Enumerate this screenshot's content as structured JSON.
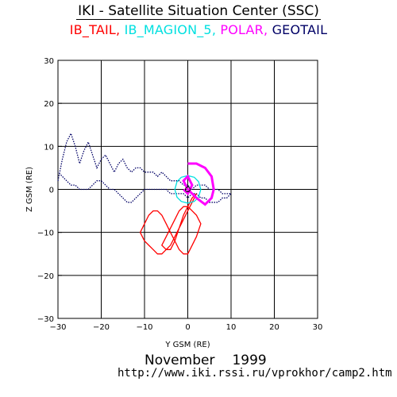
{
  "header": {
    "title": "IKI - Satellite Situation Center (SSC)",
    "legend": [
      {
        "label": "IB_TAIL",
        "color": "#ff0000"
      },
      {
        "label": "IB_MAGION_5",
        "color": "#00e0e0"
      },
      {
        "label": "POLAR",
        "color": "#ff00ff"
      },
      {
        "label": "GEOTAIL",
        "color": "#000066"
      }
    ],
    "separator": ","
  },
  "footer": {
    "month": "November",
    "year": "1999",
    "url": "http://www.iki.rssi.ru/vprokhor/camp2.htm"
  },
  "chart_data": {
    "type": "line",
    "title": "IKI - Satellite Situation Center (SSC)",
    "xlabel": "Y GSM (RE)",
    "ylabel": "Z GSM (RE)",
    "xlim": [
      -30,
      30
    ],
    "ylim": [
      -30,
      30
    ],
    "xticks": [
      -30,
      -20,
      -10,
      0,
      10,
      20,
      30
    ],
    "yticks": [
      -30,
      -20,
      -10,
      0,
      10,
      20,
      30
    ],
    "grid": true,
    "series": [
      {
        "name": "GEOTAIL",
        "color": "#000066",
        "dotted": true,
        "x": [
          -30,
          -29,
          -28,
          -27,
          -26,
          -25,
          -24,
          -23,
          -22,
          -21,
          -20,
          -19,
          -18,
          -17,
          -16,
          -15,
          -14,
          -13,
          -12,
          -11,
          -10,
          -9,
          -8,
          -7,
          -6,
          -5,
          -4,
          -3,
          -2,
          -1,
          0,
          1,
          2,
          3,
          4,
          5,
          6,
          7,
          8,
          9,
          10,
          9,
          8,
          7,
          6,
          5,
          4,
          3,
          2,
          1,
          0,
          -1,
          -2,
          -3,
          -4,
          -5,
          -6,
          -7,
          -8,
          -9,
          -10,
          -11,
          -12,
          -13,
          -14,
          -15,
          -16,
          -17,
          -18,
          -19,
          -20,
          -21,
          -22,
          -23,
          -24,
          -25,
          -26,
          -27,
          -28,
          -29,
          -30
        ],
        "y": [
          2,
          7,
          11,
          13,
          10,
          6,
          9,
          11,
          8,
          5,
          7,
          8,
          6,
          4,
          6,
          7,
          5,
          4,
          5,
          5,
          4,
          4,
          4,
          3,
          4,
          3,
          2,
          2,
          2,
          1,
          1,
          0,
          1,
          1,
          1,
          0,
          0,
          0,
          -1,
          -1,
          -1,
          -2,
          -2,
          -3,
          -3,
          -3,
          -2,
          -2,
          -1,
          -1,
          -2,
          -1,
          -1,
          -1,
          -1,
          0,
          0,
          0,
          0,
          0,
          0,
          -1,
          -2,
          -3,
          -3,
          -2,
          -1,
          0,
          0,
          1,
          2,
          2,
          1,
          0,
          0,
          0,
          1,
          1,
          2,
          3,
          4
        ]
      },
      {
        "name": "IB_TAIL",
        "color": "#ff0000",
        "dotted": false,
        "x": [
          2,
          1,
          0,
          -1,
          -2,
          -3,
          -4,
          -5,
          -6,
          -7,
          -8,
          -9,
          -10,
          -11,
          -10,
          -9,
          -8,
          -7,
          -6,
          -5,
          -4,
          -3,
          -2,
          -1,
          0,
          1,
          2,
          3,
          2,
          1,
          0,
          -1,
          -2,
          -3,
          -4,
          -5,
          -6,
          -5,
          -4,
          -3,
          -2,
          -1,
          0,
          1,
          2
        ],
        "y": [
          -1,
          -3,
          -5,
          -7,
          -9,
          -11,
          -13,
          -14,
          -15,
          -15,
          -14,
          -13,
          -12,
          -10,
          -8,
          -6,
          -5,
          -5,
          -6,
          -8,
          -10,
          -12,
          -14,
          -15,
          -15,
          -13,
          -11,
          -8,
          -6,
          -5,
          -4,
          -4,
          -5,
          -7,
          -9,
          -11,
          -13,
          -14,
          -14,
          -12,
          -9,
          -6,
          -4,
          -2,
          -1
        ]
      },
      {
        "name": "IB_MAGION_5",
        "color": "#00e0e0",
        "dotted": false,
        "x": [
          -3,
          -2.5,
          -1.5,
          0,
          1.5,
          2.5,
          3,
          2.5,
          1.5,
          0,
          -1.5,
          -2.5,
          -3
        ],
        "y": [
          0,
          1.8,
          2.8,
          3.2,
          2.8,
          1.8,
          0,
          -1.8,
          -2.8,
          -3.2,
          -2.8,
          -1.8,
          0
        ]
      },
      {
        "name": "POLAR",
        "color": "#ff00ff",
        "dotted": false,
        "x": [
          0,
          2,
          4,
          5.5,
          6,
          5.5,
          4,
          2,
          0,
          -1,
          0,
          1,
          0,
          -1
        ],
        "y": [
          6,
          6,
          5,
          3,
          0,
          -2,
          -3.5,
          -2,
          0,
          2,
          3,
          1,
          -1,
          0
        ]
      }
    ]
  }
}
